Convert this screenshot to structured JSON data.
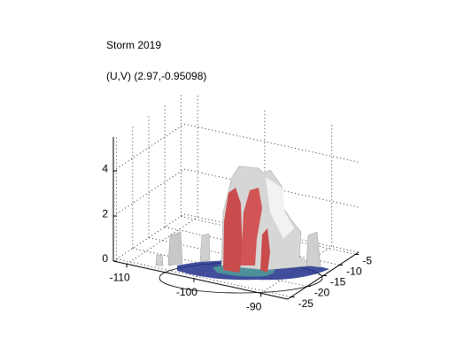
{
  "chart_data": {
    "type": "isosurface3d",
    "title": "Storm 2019",
    "subtitle": "(U,V) (2.97,-0.95098)",
    "xlim": [
      -112,
      -86
    ],
    "xticks": [
      -110,
      -100,
      -90
    ],
    "ylim": [
      -26,
      -4
    ],
    "yticks": [
      -5,
      -10,
      -15,
      -20,
      -25
    ],
    "zlim": [
      0,
      5.5
    ],
    "zticks": [
      0,
      2,
      4
    ],
    "grid": true
  }
}
